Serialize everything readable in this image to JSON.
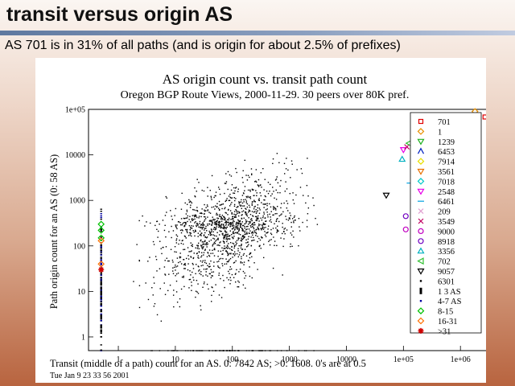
{
  "slide": {
    "title": "transit versus origin AS",
    "subtitle": "AS 701 is in 31% of all paths (and is origin for about 2.5% of prefixes)"
  },
  "chart_data": {
    "type": "scatter",
    "title": "AS origin count vs. transit path count",
    "subtitle": "Oregon BGP Route Views, 2000-11-29. 30 peers over 80K pref.",
    "xlabel": "Transit (middle of a path) count for an AS. 0: 7842 AS; >0: 1608. 0's are at 0.5",
    "ylabel": "Path origin count for an AS (0: 58 AS)",
    "timestamp": "Tue Jan  9 23 33 56 2001",
    "x_scale": "log",
    "y_scale": "log",
    "xlim": [
      0.3,
      3000000
    ],
    "ylim": [
      0.5,
      100000
    ],
    "x_ticks": [
      {
        "v": 1,
        "label": "1"
      },
      {
        "v": 10,
        "label": "10"
      },
      {
        "v": 100,
        "label": "100"
      },
      {
        "v": 1000,
        "label": "1000"
      },
      {
        "v": 10000,
        "label": "10000"
      },
      {
        "v": 100000,
        "label": "1e+05"
      },
      {
        "v": 1000000,
        "label": "1e+06"
      }
    ],
    "y_ticks": [
      {
        "v": 1,
        "label": "1"
      },
      {
        "v": 10,
        "label": "10"
      },
      {
        "v": 100,
        "label": "100"
      },
      {
        "v": 1000,
        "label": "1000"
      },
      {
        "v": 10000,
        "label": "10000"
      },
      {
        "v": 100000,
        "label": "1e+05"
      }
    ],
    "legend_position": "right",
    "series": [
      {
        "name": "701",
        "color": "#e00000",
        "marker": "square",
        "x": [
          2700000
        ],
        "y": [
          68000
        ]
      },
      {
        "name": "1",
        "color": "#e89000",
        "marker": "diamond",
        "x": [
          1800000
        ],
        "y": [
          90000
        ]
      },
      {
        "name": "1239",
        "color": "#20b020",
        "marker": "tri-down",
        "x": [
          400000
        ],
        "y": [
          25000
        ]
      },
      {
        "name": "6453",
        "color": "#0020c0",
        "marker": "caret",
        "x": [
          420000
        ],
        "y": [
          2400
        ]
      },
      {
        "name": "7914",
        "color": "#e8e000",
        "marker": "diamond",
        "x": [
          150000
        ],
        "y": [
          16000
        ]
      },
      {
        "name": "3561",
        "color": "#e87000",
        "marker": "tri-down",
        "x": [
          310000
        ],
        "y": [
          20000
        ]
      },
      {
        "name": "7018",
        "color": "#00c8c8",
        "marker": "diamond",
        "x": [
          170000
        ],
        "y": [
          28000
        ]
      },
      {
        "name": "2548",
        "color": "#e800e8",
        "marker": "tri-down",
        "x": [
          100000
        ],
        "y": [
          13000
        ]
      },
      {
        "name": "6461",
        "color": "#00a0e0",
        "marker": "dash",
        "x": [
          130000
        ],
        "y": [
          2400
        ]
      },
      {
        "name": "209",
        "color": "#e0a0d0",
        "marker": "cross",
        "x": [
          200000
        ],
        "y": [
          13000
        ]
      },
      {
        "name": "3549",
        "color": "#c00060",
        "marker": "cross",
        "x": [
          115000
        ],
        "y": [
          15000
        ]
      },
      {
        "name": "9000",
        "color": "#c000c0",
        "marker": "circle",
        "x": [
          110000
        ],
        "y": [
          230
        ]
      },
      {
        "name": "8918",
        "color": "#7000c0",
        "marker": "circle",
        "x": [
          110000
        ],
        "y": [
          450
        ]
      },
      {
        "name": "3356",
        "color": "#00b0c0",
        "marker": "tri-up",
        "x": [
          95000
        ],
        "y": [
          8000
        ]
      },
      {
        "name": "702",
        "color": "#30c030",
        "marker": "tri-left",
        "x": [
          125000
        ],
        "y": [
          18000
        ]
      },
      {
        "name": "9057",
        "color": "#000000",
        "marker": "tri-down",
        "x": [
          50000
        ],
        "y": [
          1300
        ]
      },
      {
        "name": "6301",
        "color": "#000000",
        "marker": "dot",
        "x": [],
        "y": []
      },
      {
        "name": "1 3 AS",
        "color": "#000000",
        "marker": "bar",
        "x": [],
        "y": []
      },
      {
        "name": "4-7 AS",
        "color": "#0000a0",
        "marker": "dot",
        "x": [],
        "y": []
      },
      {
        "name": "8-15",
        "color": "#00c000",
        "marker": "diamond",
        "x": [
          0.5,
          0.5,
          0.5
        ],
        "y": [
          150,
          300,
          220
        ]
      },
      {
        "name": "16-31",
        "color": "#ff7000",
        "marker": "diamond",
        "x": [
          0.5,
          0.5
        ],
        "y": [
          130,
          40
        ]
      },
      {
        "name": ">31",
        "color": "#d00000",
        "marker": "star",
        "x": [
          0.5
        ],
        "y": [
          30
        ]
      }
    ]
  }
}
